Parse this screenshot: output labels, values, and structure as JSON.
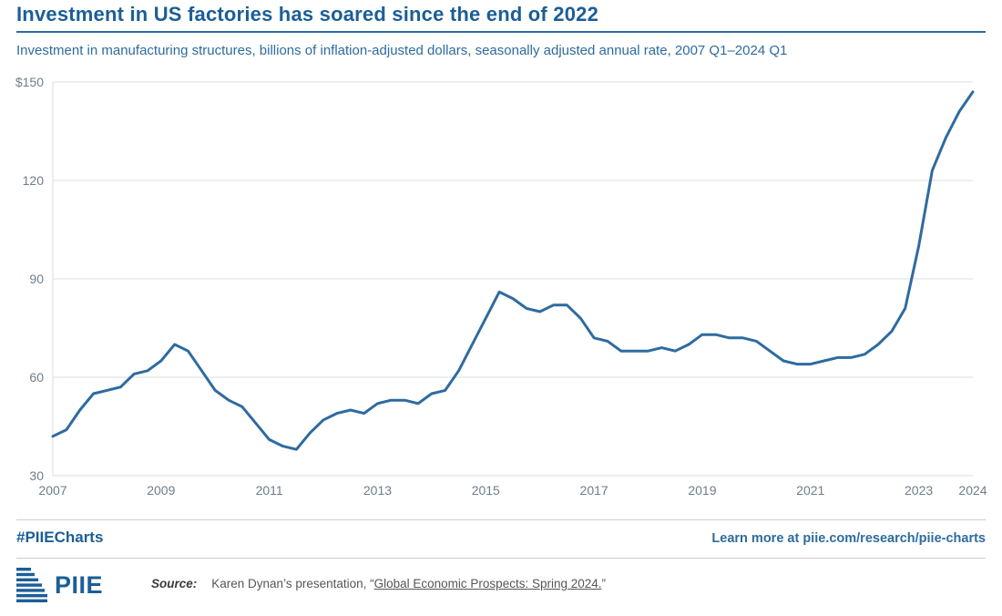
{
  "header": {
    "title": "Investment in US factories has soared since the end of 2022",
    "subtitle": "Investment in manufacturing structures, billions of inflation-adjusted dollars, seasonally adjusted annual rate, 2007 Q1–2024 Q1"
  },
  "footer": {
    "hashtag": "#PIIECharts",
    "learn_more": "Learn more at piie.com/research/piie-charts",
    "logo_text": "PIIE",
    "source_label": "Source:",
    "source_prefix": "Karen Dynan’s presentation, “",
    "source_link": "Global Economic Prospects: Spring 2024.",
    "source_suffix": "”"
  },
  "colors": {
    "line": "#2E6B9F",
    "title": "#1B5E97",
    "grid": "#DADDE0",
    "tick": "#6E7E8C",
    "divider": "#C9CED3"
  },
  "chart_data": {
    "type": "line",
    "title": "Investment in US factories has soared since the end of 2022",
    "xlabel": "",
    "ylabel": "Investment in manufacturing structures, billions of inflation-adjusted dollars, seasonally adjusted annual rate",
    "x_start": 2007.0,
    "x_step": 0.25,
    "x_unit": "quarter",
    "xlim": [
      2007,
      2024
    ],
    "ylim": [
      30,
      150
    ],
    "grid": true,
    "legend": "none",
    "x_ticks": [
      2007,
      2009,
      2011,
      2013,
      2015,
      2017,
      2019,
      2021,
      2023,
      2024
    ],
    "y_ticks": [
      150,
      120,
      90,
      60,
      30
    ],
    "y_tick_labels": [
      "$150",
      "120",
      "90",
      "60",
      "30"
    ],
    "series_name": "Investment in manufacturing structures",
    "values": [
      42,
      44,
      50,
      55,
      56,
      57,
      61,
      62,
      65,
      70,
      68,
      62,
      56,
      53,
      51,
      46,
      41,
      39,
      38,
      43,
      47,
      49,
      50,
      49,
      52,
      53,
      53,
      52,
      55,
      56,
      62,
      70,
      78,
      86,
      84,
      81,
      80,
      82,
      82,
      78,
      72,
      71,
      68,
      68,
      68,
      69,
      68,
      70,
      73,
      73,
      72,
      72,
      71,
      68,
      65,
      64,
      64,
      65,
      66,
      66,
      67,
      70,
      74,
      81,
      100,
      123,
      133,
      141,
      147
    ]
  }
}
